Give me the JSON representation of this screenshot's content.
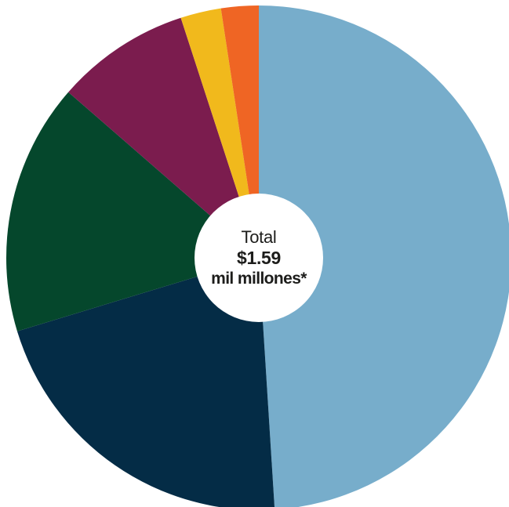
{
  "chart_data": {
    "type": "pie",
    "title": "",
    "center": {
      "label": "Total",
      "value": "$1.59",
      "unit": "mil millones*"
    },
    "slices": [
      {
        "value": 49.0,
        "color": "#77adcb"
      },
      {
        "value": 21.3,
        "color": "#042c46"
      },
      {
        "value": 16.1,
        "color": "#05472c"
      },
      {
        "value": 8.6,
        "color": "#7b1c4e"
      },
      {
        "value": 2.6,
        "color": "#f1b91c"
      },
      {
        "value": 2.4,
        "color": "#ef6524"
      }
    ]
  }
}
